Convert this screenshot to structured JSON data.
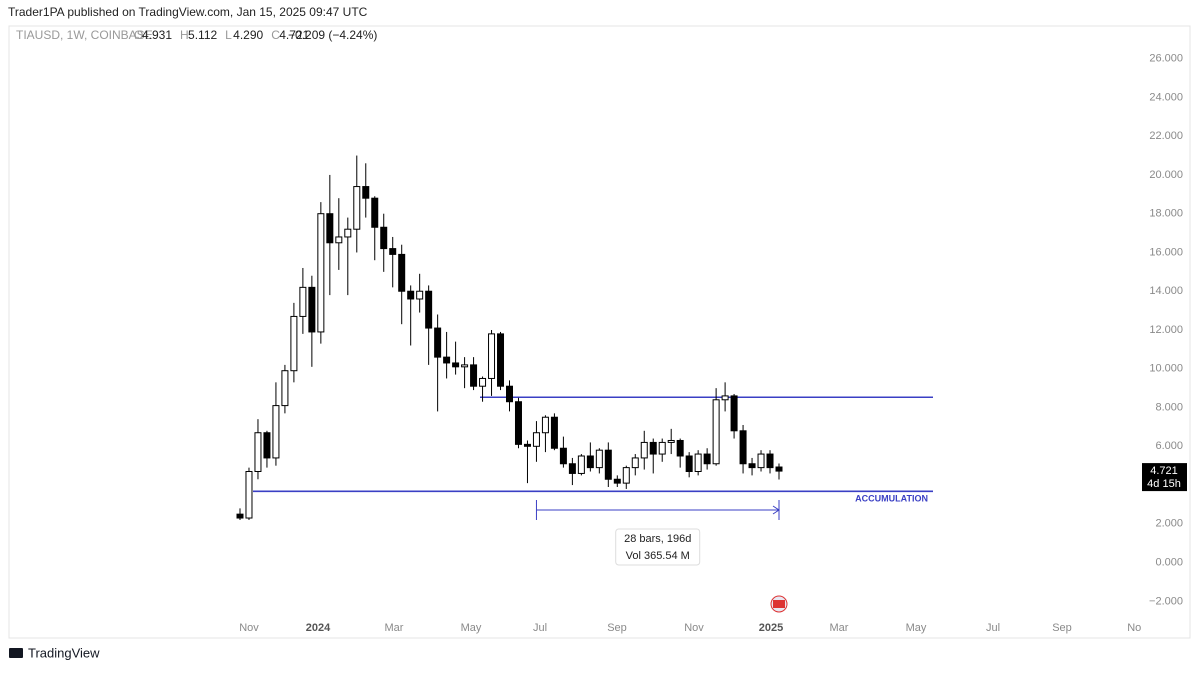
{
  "header": {
    "publisher": "Trader1PA published on TradingView.com, Jan 15, 2025 09:47 UTC",
    "symbol": "TIAUSD, 1W, COINBASE",
    "ohlc": [
      {
        "label": "O",
        "value": "4.931"
      },
      {
        "label": "H",
        "value": "5.112"
      },
      {
        "label": "L",
        "value": "4.290"
      },
      {
        "label": "C",
        "value": "4.721"
      }
    ],
    "change": "−0.209 (−4.24%)"
  },
  "chart_data": {
    "type": "candlestick",
    "open": [
      2.5,
      2.3,
      4.7,
      6.7,
      5.4,
      8.1,
      9.9,
      12.7,
      14.2,
      11.9,
      18.0,
      16.5,
      16.8,
      17.2,
      19.4,
      18.8,
      17.3,
      16.2,
      15.9,
      14.0,
      13.6,
      14.0,
      12.1,
      10.6,
      10.3,
      10.1,
      10.2,
      9.1,
      9.5,
      11.8,
      9.1,
      8.3,
      6.1,
      6.0,
      6.7,
      7.5,
      5.9,
      5.1,
      4.6,
      5.5,
      4.9,
      5.8,
      4.3,
      4.1,
      4.9,
      5.4,
      6.2,
      5.6,
      6.2,
      6.3,
      5.5,
      4.7,
      5.6,
      5.1,
      8.4,
      8.6,
      6.8,
      5.1,
      4.9,
      5.6,
      4.931
    ],
    "high": [
      2.8,
      4.9,
      7.4,
      6.8,
      9.3,
      10.2,
      13.4,
      15.2,
      14.8,
      18.6,
      20.0,
      18.8,
      17.8,
      21.0,
      20.6,
      18.9,
      18.0,
      16.8,
      16.4,
      14.3,
      14.9,
      14.3,
      12.8,
      11.9,
      11.4,
      10.6,
      10.6,
      9.6,
      12.0,
      11.9,
      9.4,
      8.5,
      6.3,
      7.3,
      7.6,
      7.7,
      6.5,
      5.4,
      5.6,
      6.2,
      5.9,
      6.2,
      4.5,
      5.0,
      5.6,
      6.8,
      6.4,
      6.4,
      6.9,
      6.4,
      5.7,
      5.8,
      5.9,
      9.0,
      9.3,
      8.7,
      7.1,
      5.4,
      5.8,
      5.8,
      5.112
    ],
    "low": [
      2.2,
      2.2,
      4.3,
      4.9,
      5.0,
      7.7,
      9.3,
      11.8,
      10.1,
      11.3,
      13.8,
      15.1,
      13.8,
      16.0,
      17.8,
      15.6,
      15.0,
      14.2,
      12.3,
      11.2,
      12.9,
      10.2,
      7.8,
      9.5,
      9.7,
      9.0,
      8.9,
      8.3,
      8.6,
      8.9,
      7.8,
      5.9,
      4.1,
      5.2,
      5.7,
      5.8,
      4.9,
      4.0,
      4.5,
      4.7,
      4.6,
      3.9,
      3.9,
      3.8,
      4.5,
      4.8,
      4.6,
      5.2,
      5.6,
      4.9,
      4.4,
      4.5,
      4.8,
      5.0,
      7.8,
      6.4,
      4.6,
      4.5,
      4.7,
      4.6,
      4.29
    ],
    "close": [
      2.3,
      4.7,
      6.7,
      5.4,
      8.1,
      9.9,
      12.7,
      14.2,
      11.9,
      18.0,
      16.5,
      16.8,
      17.2,
      19.4,
      18.8,
      17.3,
      16.2,
      15.9,
      14.0,
      13.6,
      14.0,
      12.1,
      10.6,
      10.3,
      10.1,
      10.2,
      9.1,
      9.5,
      11.8,
      9.1,
      8.3,
      6.1,
      6.0,
      6.7,
      7.5,
      5.9,
      5.1,
      4.6,
      5.5,
      4.9,
      5.8,
      4.3,
      4.1,
      4.9,
      5.4,
      6.2,
      5.6,
      6.2,
      6.3,
      5.5,
      4.7,
      5.6,
      5.1,
      8.4,
      8.6,
      6.8,
      5.1,
      4.9,
      5.6,
      4.9,
      4.721
    ],
    "x_labels": [
      "Nov",
      "2024",
      "Mar",
      "May",
      "Jul",
      "Sep",
      "Nov",
      "2025",
      "Mar",
      "May",
      "Jul",
      "Sep",
      "Nov"
    ],
    "ylim": [
      -2.6,
      26.6
    ],
    "yticks": [
      {
        "value": 26,
        "label": "26.000"
      },
      {
        "value": 24,
        "label": "24.000"
      },
      {
        "value": 22,
        "label": "22.000"
      },
      {
        "value": 20,
        "label": "20.000"
      },
      {
        "value": 18,
        "label": "18.000"
      },
      {
        "value": 16,
        "label": "16.000"
      },
      {
        "value": 14,
        "label": "14.000"
      },
      {
        "value": 12,
        "label": "12.000"
      },
      {
        "value": 10,
        "label": "10.000"
      },
      {
        "value": 8,
        "label": "8.000"
      },
      {
        "value": 6,
        "label": "6.000"
      },
      {
        "value": 4,
        "label": "4.000"
      },
      {
        "value": 2,
        "label": "2.000"
      },
      {
        "value": 0,
        "label": "0.000"
      },
      {
        "value": -2,
        "label": "−2.000"
      }
    ],
    "price_tag": {
      "price": "4.721",
      "countdown": "4d 15h"
    },
    "levels": [
      {
        "value": 8.53
      },
      {
        "value": 3.68,
        "label": "ACCUMULATION"
      }
    ],
    "measure": {
      "bars": "28 bars, 196d",
      "volume": "Vol 365.54 M"
    },
    "line_color": "#3a3fc4"
  },
  "footer": {
    "brand": "TradingView"
  }
}
